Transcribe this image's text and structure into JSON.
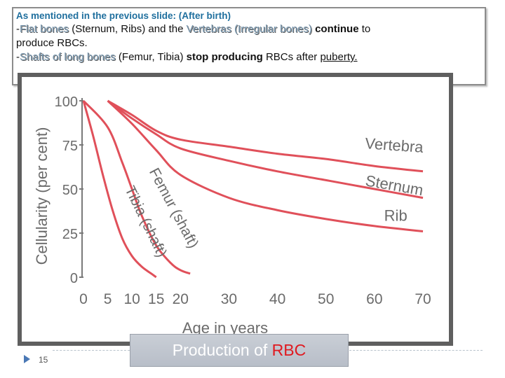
{
  "slide": {
    "heading": "As mentioned in the previous slide: (After birth)",
    "line1": {
      "dash": "-",
      "flat_bones": "Flat bones",
      "paren1": " (Sternum, Ribs) and the ",
      "vertebras": "Vertebras (Irregular bones)",
      "space": " ",
      "continue": "continue",
      "rest": " to"
    },
    "line2": "produce RBCs.",
    "line3": {
      "dash": "-",
      "shafts": "Shafts of long bones",
      "paren": " (Femur, Tibia) ",
      "stop": "stop producing",
      "mid": " RBCs after ",
      "puberty": "puberty."
    },
    "caption_prefix": "Production of ",
    "caption_accent": "RBC",
    "slide_number": "15"
  },
  "chart_data": {
    "type": "line",
    "xlabel": "Age in years",
    "ylabel": "Cellularity (per cent)",
    "x_ticks": [
      0,
      5,
      10,
      15,
      20,
      30,
      40,
      50,
      60,
      70
    ],
    "y_ticks": [
      0,
      25,
      50,
      75,
      100
    ],
    "xlim": [
      0,
      70
    ],
    "ylim": [
      0,
      100
    ],
    "grid": false,
    "series": [
      {
        "name": "Vertebra",
        "color": "#e0505a",
        "points": [
          [
            5,
            100
          ],
          [
            10,
            92
          ],
          [
            15,
            83
          ],
          [
            20,
            78
          ],
          [
            30,
            74
          ],
          [
            40,
            70
          ],
          [
            50,
            67
          ],
          [
            60,
            63
          ],
          [
            70,
            60
          ]
        ]
      },
      {
        "name": "Sternum",
        "color": "#e0505a",
        "points": [
          [
            5,
            100
          ],
          [
            10,
            90
          ],
          [
            15,
            81
          ],
          [
            20,
            73
          ],
          [
            30,
            66
          ],
          [
            40,
            60
          ],
          [
            50,
            55
          ],
          [
            60,
            50
          ],
          [
            70,
            45
          ]
        ]
      },
      {
        "name": "Rib",
        "color": "#e0505a",
        "points": [
          [
            5,
            100
          ],
          [
            10,
            87
          ],
          [
            15,
            72
          ],
          [
            20,
            58
          ],
          [
            30,
            45
          ],
          [
            40,
            38
          ],
          [
            50,
            33
          ],
          [
            60,
            29
          ],
          [
            70,
            26
          ]
        ]
      },
      {
        "name": "Femur (shaft)",
        "color": "#e0505a",
        "points": [
          [
            0,
            100
          ],
          [
            5,
            85
          ],
          [
            8,
            65
          ],
          [
            10,
            50
          ],
          [
            12,
            35
          ],
          [
            15,
            18
          ],
          [
            18,
            8
          ],
          [
            20,
            4
          ],
          [
            22,
            2
          ]
        ]
      },
      {
        "name": "Tibia (shaft)",
        "color": "#e0505a",
        "points": [
          [
            0,
            100
          ],
          [
            2,
            80
          ],
          [
            4,
            58
          ],
          [
            6,
            38
          ],
          [
            8,
            22
          ],
          [
            10,
            12
          ],
          [
            12,
            6
          ],
          [
            14,
            2
          ],
          [
            15,
            0
          ]
        ]
      }
    ]
  }
}
